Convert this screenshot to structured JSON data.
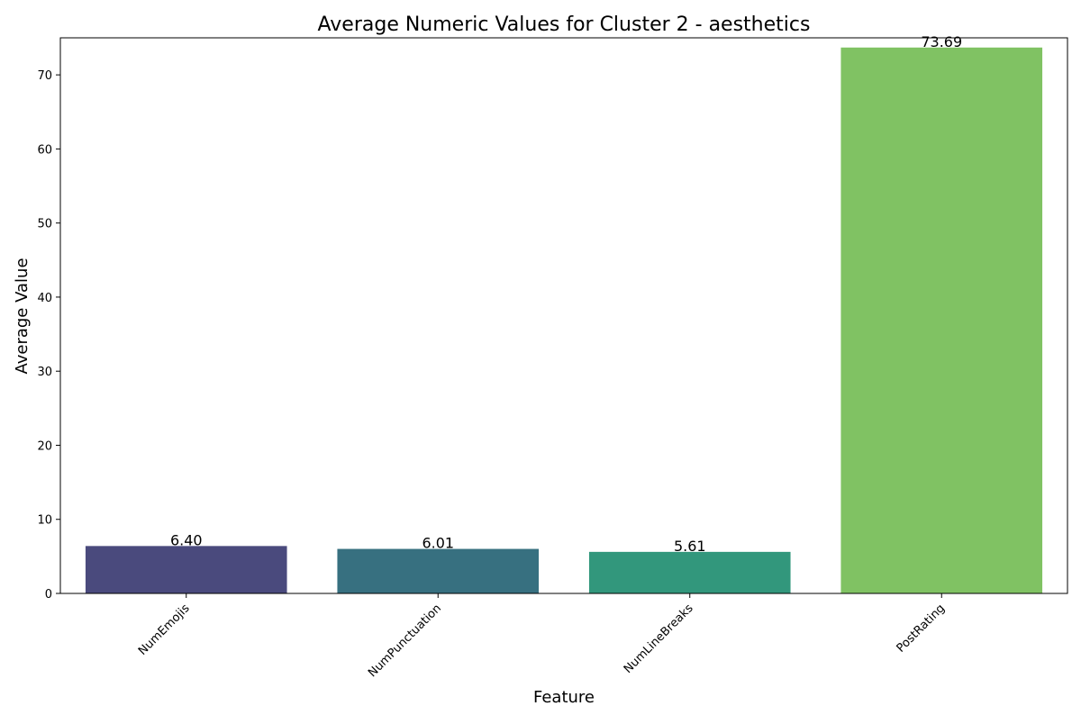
{
  "chart_data": {
    "type": "bar",
    "title": "Average Numeric Values for Cluster 2 - aesthetics",
    "xlabel": "Feature",
    "ylabel": "Average Value",
    "categories": [
      "NumEmojis",
      "NumPunctuation",
      "NumLineBreaks",
      "PostRating"
    ],
    "values": [
      6.4,
      6.01,
      5.61,
      73.69
    ],
    "value_labels": [
      "6.40",
      "6.01",
      "5.61",
      "73.69"
    ],
    "colors": [
      "#4a4a7d",
      "#377080",
      "#32977c",
      "#80c263"
    ],
    "ylim": [
      0,
      75
    ],
    "yticks": [
      0,
      10,
      20,
      30,
      40,
      50,
      60,
      70
    ],
    "grid": false,
    "legend": "none"
  }
}
